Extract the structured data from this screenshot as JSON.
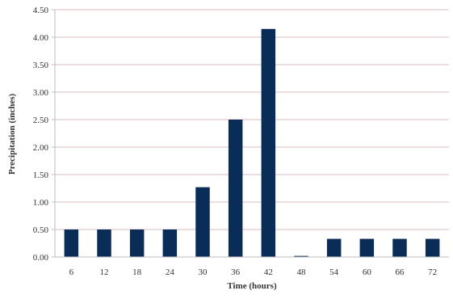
{
  "colors": {
    "bar": "#0a2d57",
    "grid": "#d9bdbd",
    "axis": "#bdbdbd",
    "background": "#ffffff"
  },
  "chart_data": {
    "type": "bar",
    "categories": [
      "6",
      "12",
      "18",
      "24",
      "30",
      "36",
      "42",
      "48",
      "54",
      "60",
      "66",
      "72"
    ],
    "values": [
      0.5,
      0.5,
      0.5,
      0.5,
      1.27,
      2.5,
      4.15,
      0.02,
      0.33,
      0.33,
      0.33,
      0.33
    ],
    "xlabel": "Time (hours)",
    "ylabel": "Precipitation (inches)",
    "ylim": [
      0,
      4.5
    ],
    "yticks": [
      "0.00",
      "0.50",
      "1.00",
      "1.50",
      "2.00",
      "2.50",
      "3.00",
      "3.50",
      "4.00",
      "4.50"
    ],
    "grid": true,
    "legend": "none"
  }
}
